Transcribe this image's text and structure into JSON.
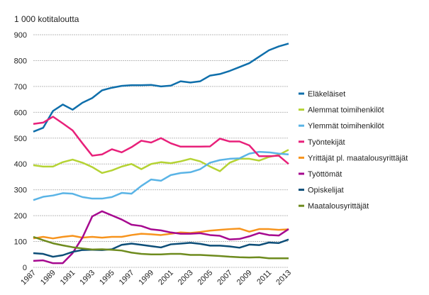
{
  "chart_data": {
    "type": "line",
    "ylabel": "1 000 kotitaloutta",
    "ylim": [
      0,
      900
    ],
    "yticks": [
      0,
      100,
      200,
      300,
      400,
      500,
      600,
      700,
      800,
      900
    ],
    "x": [
      1987,
      1988,
      1989,
      1990,
      1991,
      1992,
      1993,
      1994,
      1995,
      1996,
      1997,
      1998,
      1999,
      2000,
      2001,
      2002,
      2003,
      2004,
      2005,
      2006,
      2007,
      2008,
      2009,
      2010,
      2011,
      2012,
      2013
    ],
    "xticks": [
      1987,
      1989,
      1991,
      1993,
      1995,
      1997,
      1999,
      2001,
      2003,
      2005,
      2007,
      2009,
      2011,
      2013
    ],
    "grid": "horizontal",
    "legend": "right",
    "series": [
      {
        "name": "Eläkeläiset",
        "color": "#0f6fab",
        "values": [
          525,
          540,
          605,
          630,
          610,
          637,
          655,
          685,
          695,
          702,
          705,
          705,
          706,
          700,
          703,
          720,
          715,
          720,
          742,
          748,
          760,
          775,
          790,
          815,
          840,
          855,
          866
        ]
      },
      {
        "name": "Alemmat toimihenkilöt",
        "color": "#b5d334",
        "values": [
          395,
          390,
          390,
          407,
          417,
          405,
          388,
          365,
          375,
          390,
          400,
          380,
          400,
          407,
          403,
          410,
          420,
          410,
          390,
          372,
          405,
          420,
          420,
          413,
          427,
          435,
          455
        ]
      },
      {
        "name": "Ylemmät toimihenkilöt",
        "color": "#5ab4e6",
        "values": [
          260,
          273,
          278,
          287,
          285,
          272,
          266,
          266,
          272,
          288,
          285,
          315,
          340,
          335,
          357,
          365,
          368,
          380,
          405,
          415,
          420,
          422,
          440,
          447,
          445,
          440,
          437
        ]
      },
      {
        "name": "Työntekijät",
        "color": "#e8207a",
        "values": [
          555,
          560,
          583,
          557,
          530,
          480,
          432,
          437,
          457,
          445,
          465,
          490,
          483,
          500,
          480,
          467,
          467,
          467,
          468,
          498,
          487,
          487,
          472,
          430,
          430,
          432,
          400
        ]
      },
      {
        "name": "Yrittäjät pl. maatalousyrittäjät",
        "color": "#f7941d",
        "values": [
          112,
          118,
          112,
          118,
          122,
          115,
          118,
          115,
          118,
          118,
          125,
          130,
          128,
          125,
          130,
          135,
          133,
          137,
          142,
          145,
          148,
          150,
          138,
          148,
          148,
          145,
          147
        ]
      },
      {
        "name": "Työttömät",
        "color": "#a6088f",
        "values": [
          25,
          27,
          16,
          16,
          55,
          115,
          197,
          217,
          201,
          185,
          165,
          160,
          147,
          143,
          135,
          130,
          130,
          132,
          125,
          122,
          108,
          110,
          120,
          133,
          125,
          123,
          148
        ]
      },
      {
        "name": "Opiskelijat",
        "color": "#0d4e78",
        "values": [
          55,
          52,
          41,
          47,
          60,
          67,
          68,
          67,
          70,
          87,
          92,
          87,
          82,
          77,
          89,
          92,
          95,
          91,
          84,
          84,
          81,
          76,
          88,
          86,
          96,
          94,
          108
        ]
      },
      {
        "name": "Maatalousyrittäjät",
        "color": "#6e8b1e",
        "values": [
          118,
          105,
          93,
          85,
          78,
          73,
          69,
          70,
          68,
          65,
          57,
          52,
          50,
          50,
          52,
          52,
          48,
          48,
          46,
          44,
          41,
          39,
          38,
          39,
          35,
          35,
          35
        ]
      }
    ]
  }
}
